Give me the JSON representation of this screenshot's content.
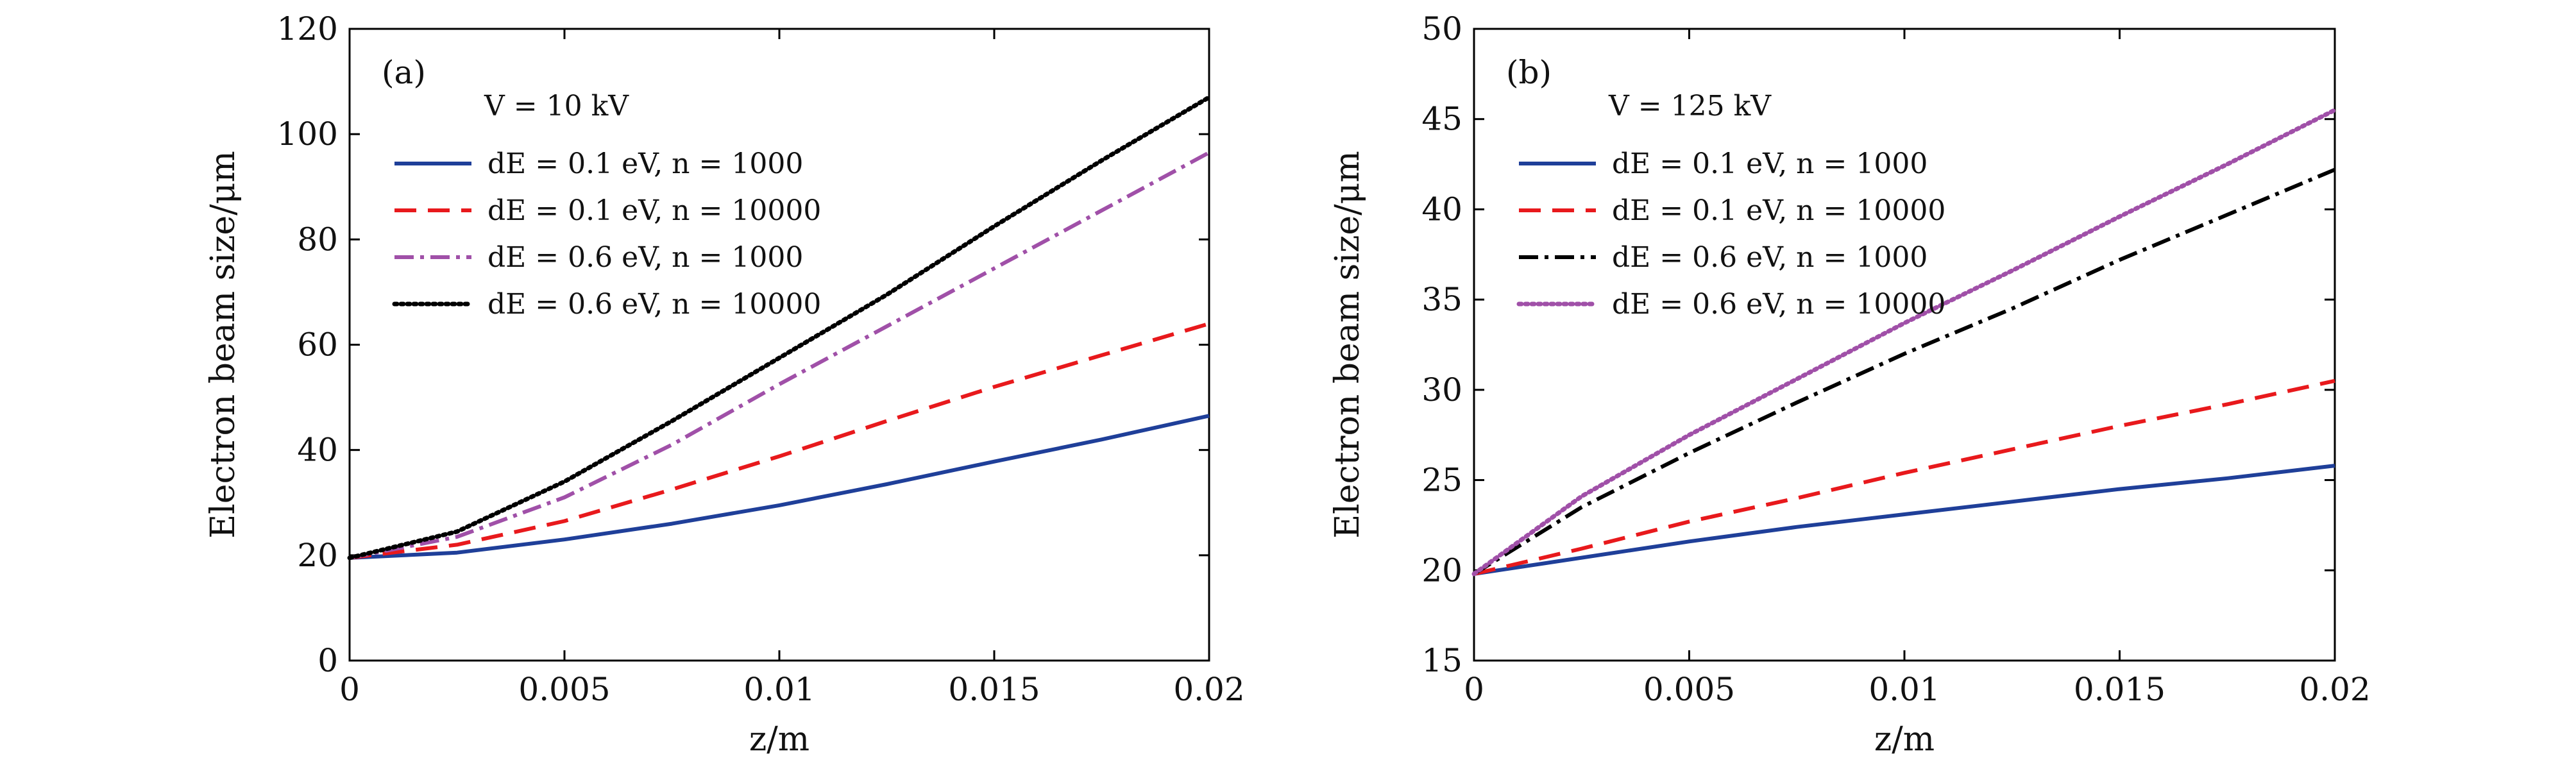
{
  "chart_data": [
    {
      "type": "line",
      "panel_label": "(a)",
      "condition": "V = 10 kV",
      "xlabel": "z/m",
      "ylabel": "Electron beam size/μm",
      "xlim": [
        0,
        0.02
      ],
      "ylim": [
        0,
        120
      ],
      "xticks": [
        "0",
        "0.005",
        "0.01",
        "0.015",
        "0.02"
      ],
      "yticks": [
        "0",
        "20",
        "40",
        "60",
        "80",
        "100",
        "120"
      ],
      "legend_position": "top-left",
      "x": [
        0,
        0.0025,
        0.005,
        0.0075,
        0.01,
        0.0125,
        0.015,
        0.0175,
        0.02
      ],
      "series": [
        {
          "name": "dE = 0.1 eV, n = 1000",
          "color": "#1f3f99",
          "style": "solid",
          "values": [
            19.5,
            20.5,
            23.0,
            26.0,
            29.5,
            33.5,
            37.8,
            42.0,
            46.5
          ]
        },
        {
          "name": "dE = 0.1 eV, n = 10000",
          "color": "#e8191c",
          "style": "dashed",
          "values": [
            19.5,
            22.0,
            26.5,
            32.5,
            38.8,
            45.5,
            52.0,
            58.0,
            64.0
          ]
        },
        {
          "name": "dE = 0.6 eV, n = 1000",
          "color": "#a050a8",
          "style": "dashdot",
          "values": [
            19.5,
            23.5,
            31.0,
            41.0,
            52.5,
            63.5,
            74.5,
            85.5,
            96.5
          ]
        },
        {
          "name": "dE = 0.6 eV, n = 10000",
          "color": "#000000",
          "style": "dotted",
          "values": [
            19.5,
            24.5,
            34.0,
            45.5,
            57.5,
            69.5,
            82.5,
            95.0,
            107.0
          ]
        }
      ]
    },
    {
      "type": "line",
      "panel_label": "(b)",
      "condition": "V = 125 kV",
      "xlabel": "z/m",
      "ylabel": "Electron beam size/μm",
      "xlim": [
        0,
        0.02
      ],
      "ylim": [
        15,
        50
      ],
      "xticks": [
        "0",
        "0.005",
        "0.01",
        "0.015",
        "0.02"
      ],
      "yticks": [
        "15",
        "20",
        "25",
        "30",
        "35",
        "40",
        "45",
        "50"
      ],
      "legend_position": "top-left",
      "x": [
        0,
        0.0025,
        0.005,
        0.0075,
        0.01,
        0.0125,
        0.015,
        0.0175,
        0.02
      ],
      "series": [
        {
          "name": "dE = 0.1 eV, n = 1000",
          "color": "#1f3f99",
          "style": "solid",
          "values": [
            19.8,
            20.7,
            21.6,
            22.4,
            23.1,
            23.8,
            24.5,
            25.1,
            25.8
          ]
        },
        {
          "name": "dE = 0.1 eV, n = 10000",
          "color": "#e8191c",
          "style": "dashed",
          "values": [
            19.8,
            21.2,
            22.7,
            24.0,
            25.4,
            26.7,
            28.0,
            29.2,
            30.5
          ]
        },
        {
          "name": "dE = 0.6 eV, n = 1000",
          "color": "#000000",
          "style": "dashdot",
          "values": [
            19.8,
            23.5,
            26.5,
            29.3,
            32.0,
            34.5,
            37.2,
            39.7,
            42.2
          ]
        },
        {
          "name": "dE = 0.6 eV, n = 10000",
          "color": "#a050a8",
          "style": "dotted",
          "values": [
            19.8,
            24.1,
            27.5,
            30.6,
            33.7,
            36.6,
            39.6,
            42.5,
            45.5
          ]
        }
      ]
    }
  ]
}
